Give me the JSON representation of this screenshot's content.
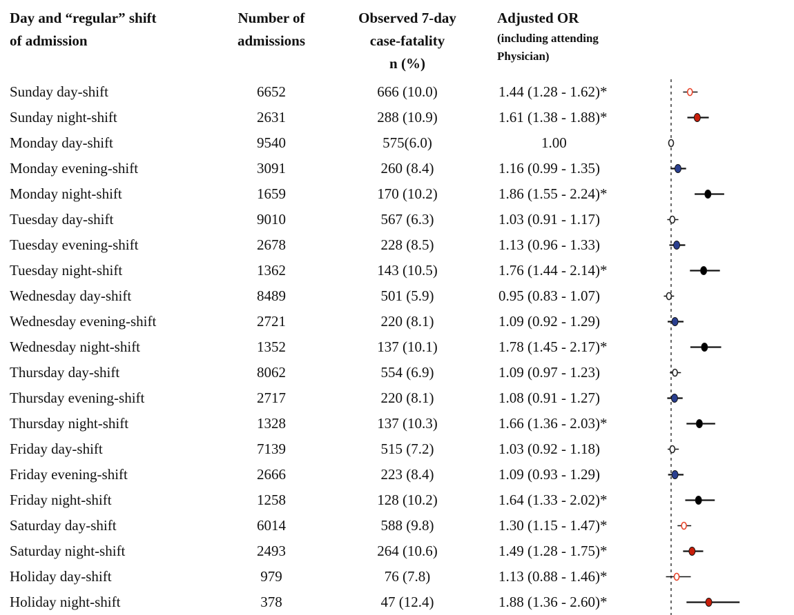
{
  "headers": {
    "day_line1": "Day and “regular” shift",
    "day_line2": "of admission",
    "num_line1": "Number of",
    "num_line2": "admissions",
    "obs_line1": "Observed 7-day",
    "obs_line2": "case-fatality",
    "obs_line3": "n (%)",
    "or_line1": "Adjusted OR",
    "or_line2": "(including attending",
    "or_line3": "Physician)"
  },
  "chart_data": {
    "type": "table",
    "reference_value": 1.0,
    "columns": [
      "Day and “regular” shift of admission",
      "Number of admissions",
      "Observed 7-day case-fatality n (%)",
      "Adjusted OR (including attending Physician)"
    ],
    "rows": [
      {
        "label": "Sunday day-shift",
        "n": "6652",
        "obs": "666 (10.0)",
        "or_text": "1.44 (1.28 - 1.62)*",
        "or": 1.44,
        "lo": 1.28,
        "hi": 1.62,
        "color": "#e8442a",
        "filled": false
      },
      {
        "label": "Sunday  night-shift",
        "n": "2631",
        "obs": "288 (10.9)",
        "or_text": "1.61 (1.38 - 1.88)*",
        "or": 1.61,
        "lo": 1.38,
        "hi": 1.88,
        "color": "#c81e0a",
        "filled": true
      },
      {
        "label": "Monday day-shift",
        "n": "9540",
        "obs": "575(6.0)",
        "or_text": "1.00",
        "or": 1.0,
        "lo": 1.0,
        "hi": 1.0,
        "color": "#222222",
        "filled": false,
        "ref": true
      },
      {
        "label": "Monday evening-shift",
        "n": "3091",
        "obs": "260 (8.4)",
        "or_text": "1.16 (0.99 - 1.35)",
        "or": 1.16,
        "lo": 0.99,
        "hi": 1.35,
        "color": "#2a3f8f",
        "filled": true
      },
      {
        "label": "Monday night-shift",
        "n": "1659",
        "obs": "170 (10.2)",
        "or_text": "1.86 (1.55 - 2.24)*",
        "or": 1.86,
        "lo": 1.55,
        "hi": 2.24,
        "color": "#000000",
        "filled": true
      },
      {
        "label": "Tuesday day-shift",
        "n": "9010",
        "obs": "567 (6.3)",
        "or_text": "1.03 (0.91 - 1.17)",
        "or": 1.03,
        "lo": 0.91,
        "hi": 1.17,
        "color": "#222222",
        "filled": false
      },
      {
        "label": "Tuesday evening-shift",
        "n": "2678",
        "obs": "228 (8.5)",
        "or_text": "1.13 (0.96 - 1.33)",
        "or": 1.13,
        "lo": 0.96,
        "hi": 1.33,
        "color": "#2a3f8f",
        "filled": true
      },
      {
        "label": "Tuesday night-shift",
        "n": "1362",
        "obs": "143 (10.5)",
        "or_text": "1.76 (1.44 - 2.14)*",
        "or": 1.76,
        "lo": 1.44,
        "hi": 2.14,
        "color": "#000000",
        "filled": true
      },
      {
        "label": "Wednesday day-shift",
        "n": "8489",
        "obs": "501 (5.9)",
        "or_text": "0.95 (0.83 - 1.07)",
        "or": 0.95,
        "lo": 0.83,
        "hi": 1.07,
        "color": "#222222",
        "filled": false
      },
      {
        "label": "Wednesday evening-shift",
        "n": "2721",
        "obs": "220 (8.1)",
        "or_text": "1.09 (0.92 - 1.29)",
        "or": 1.09,
        "lo": 0.92,
        "hi": 1.29,
        "color": "#2a3f8f",
        "filled": true
      },
      {
        "label": "Wednesday night-shift",
        "n": "1352",
        "obs": "137 (10.1)",
        "or_text": "1.78 (1.45 - 2.17)*",
        "or": 1.78,
        "lo": 1.45,
        "hi": 2.17,
        "color": "#000000",
        "filled": true
      },
      {
        "label": "Thursday day-shift",
        "n": "8062",
        "obs": "554 (6.9)",
        "or_text": "1.09 (0.97 - 1.23)",
        "or": 1.09,
        "lo": 0.97,
        "hi": 1.23,
        "color": "#222222",
        "filled": false
      },
      {
        "label": "Thursday evening-shift",
        "n": "2717",
        "obs": "220 (8.1)",
        "or_text": "1.08 (0.91 - 1.27)",
        "or": 1.08,
        "lo": 0.91,
        "hi": 1.27,
        "color": "#2a3f8f",
        "filled": true
      },
      {
        "label": "Thursday night-shift",
        "n": "1328",
        "obs": "137 (10.3)",
        "or_text": "1.66 (1.36 - 2.03)*",
        "or": 1.66,
        "lo": 1.36,
        "hi": 2.03,
        "color": "#000000",
        "filled": true
      },
      {
        "label": "Friday day-shift",
        "n": "7139",
        "obs": "515 (7.2)",
        "or_text": "1.03 (0.92 - 1.18)",
        "or": 1.03,
        "lo": 0.92,
        "hi": 1.18,
        "color": "#222222",
        "filled": false
      },
      {
        "label": "Friday evening-shift",
        "n": "2666",
        "obs": "223 (8.4)",
        "or_text": "1.09 (0.93 - 1.29)",
        "or": 1.09,
        "lo": 0.93,
        "hi": 1.29,
        "color": "#2a3f8f",
        "filled": true
      },
      {
        "label": "Friday night-shift",
        "n": "1258",
        "obs": "128 (10.2)",
        "or_text": "1.64 (1.33 - 2.02)*",
        "or": 1.64,
        "lo": 1.33,
        "hi": 2.02,
        "color": "#000000",
        "filled": true
      },
      {
        "label": "Saturday day-shift",
        "n": "6014",
        "obs": "588 (9.8)",
        "or_text": "1.30 (1.15 - 1.47)*",
        "or": 1.3,
        "lo": 1.15,
        "hi": 1.47,
        "color": "#e8442a",
        "filled": false
      },
      {
        "label": "Saturday night-shift",
        "n": "2493",
        "obs": "264 (10.6)",
        "or_text": "1.49 (1.28 - 1.75)*",
        "or": 1.49,
        "lo": 1.28,
        "hi": 1.75,
        "color": "#c81e0a",
        "filled": true
      },
      {
        "label": "Holiday day-shift",
        "n": "979",
        "obs": "76 (7.8)",
        "or_text": "1.13 (0.88 - 1.46)*",
        "or": 1.13,
        "lo": 0.88,
        "hi": 1.46,
        "color": "#e8442a",
        "filled": false
      },
      {
        "label": "Holiday night-shift",
        "n": "378",
        "obs": "47 (12.4)",
        "or_text": "1.88 (1.36 - 2.60)*",
        "or": 1.88,
        "lo": 1.36,
        "hi": 2.6,
        "color": "#c81e0a",
        "filled": true
      }
    ]
  }
}
